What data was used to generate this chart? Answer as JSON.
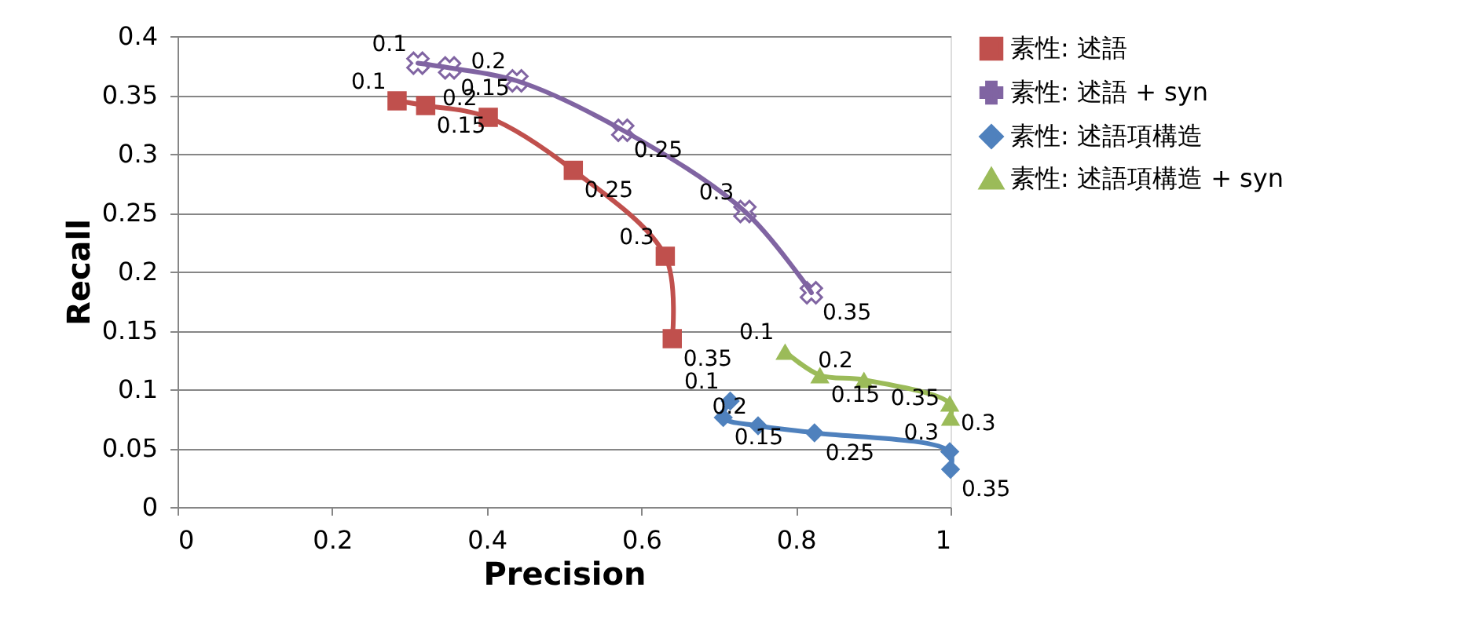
{
  "chart_data": {
    "type": "line",
    "xlabel": "Precision",
    "ylabel": "Recall",
    "xlim": [
      0,
      1
    ],
    "xticks": [
      0,
      0.2,
      0.4,
      0.6,
      0.8,
      1
    ],
    "ylim": [
      0,
      0.4
    ],
    "yticks": [
      0,
      0.05,
      0.1,
      0.15,
      0.2,
      0.25,
      0.3,
      0.35,
      0.4
    ],
    "grid": "y",
    "legend": "right",
    "line_style": "solid",
    "series": [
      {
        "name": "素性: 述語",
        "color": "#c0504d",
        "marker": "square",
        "x": [
          0.284,
          0.321,
          0.402,
          0.512,
          0.631,
          0.64
        ],
        "values": [
          0.345,
          0.341,
          0.331,
          0.286,
          0.213,
          0.143
        ]
      },
      {
        "name": "素性: 述語 + syn",
        "color": "#8064a2",
        "marker": "cross",
        "x": [
          0.311,
          0.352,
          0.439,
          0.576,
          0.734,
          0.82
        ],
        "values": [
          0.377,
          0.373,
          0.362,
          0.32,
          0.251,
          0.182
        ]
      },
      {
        "name": "素性: 述語項構造",
        "color": "#4f81bd",
        "marker": "diamond",
        "x": [
          0.715,
          0.706,
          0.751,
          0.824,
          0.999,
          1.0
        ],
        "values": [
          0.09,
          0.076,
          0.069,
          0.063,
          0.047,
          0.032
        ]
      },
      {
        "name": "素性: 述語項構造 + syn",
        "color": "#9bbb59",
        "marker": "triangle",
        "x": [
          0.786,
          0.831,
          0.888,
          0.999,
          1.0
        ],
        "values": [
          0.132,
          0.112,
          0.108,
          0.088,
          0.076
        ]
      }
    ],
    "annotations": [
      {
        "text": "0.1",
        "x": 0.284,
        "y": 0.345
      },
      {
        "text": "0.15",
        "x": 0.321,
        "y": 0.341
      },
      {
        "text": "0.2",
        "x": 0.402,
        "y": 0.331
      },
      {
        "text": "0.25",
        "x": 0.512,
        "y": 0.286
      },
      {
        "text": "0.3",
        "x": 0.631,
        "y": 0.213
      },
      {
        "text": "0.35",
        "x": 0.64,
        "y": 0.143
      },
      {
        "text": "0.1",
        "x": 0.311,
        "y": 0.377
      },
      {
        "text": "0.15",
        "x": 0.352,
        "y": 0.373
      },
      {
        "text": "0.2",
        "x": 0.439,
        "y": 0.362
      },
      {
        "text": "0.25",
        "x": 0.576,
        "y": 0.32
      },
      {
        "text": "0.3",
        "x": 0.734,
        "y": 0.251
      },
      {
        "text": "0.35",
        "x": 0.82,
        "y": 0.182
      },
      {
        "text": "0.1",
        "x": 0.715,
        "y": 0.09
      },
      {
        "text": "0.15",
        "x": 0.706,
        "y": 0.076
      },
      {
        "text": "0.2",
        "x": 0.751,
        "y": 0.069
      },
      {
        "text": "0.25",
        "x": 0.824,
        "y": 0.063
      },
      {
        "text": "0.3",
        "x": 0.999,
        "y": 0.047
      },
      {
        "text": "0.35",
        "x": 1.0,
        "y": 0.032
      },
      {
        "text": "0.1",
        "x": 0.786,
        "y": 0.132
      },
      {
        "text": "0.15",
        "x": 0.831,
        "y": 0.112
      },
      {
        "text": "0.2",
        "x": 0.888,
        "y": 0.108
      },
      {
        "text": "0.3",
        "x": 0.999,
        "y": 0.088
      },
      {
        "text": "0.35",
        "x": 1.0,
        "y": 0.076
      }
    ]
  }
}
